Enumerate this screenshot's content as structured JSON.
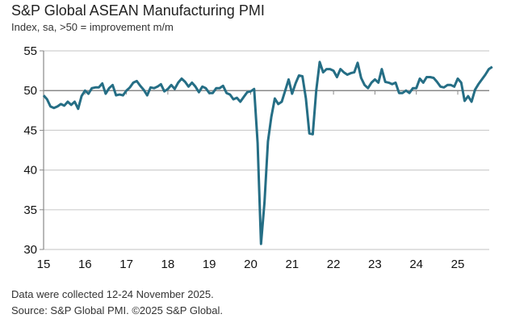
{
  "chart_data": {
    "type": "line",
    "title": "S&P Global ASEAN Manufacturing PMI",
    "subtitle": "Index, sa, >50 = improvement m/m",
    "x_start": "2015-01",
    "x_end": "2025-11",
    "frequency": "monthly",
    "xticks": [
      "15",
      "16",
      "17",
      "18",
      "19",
      "20",
      "21",
      "22",
      "23",
      "24",
      "25"
    ],
    "yticks": [
      30,
      35,
      40,
      45,
      50,
      55
    ],
    "ylim": [
      30,
      55
    ],
    "grid": true,
    "reference_line": 50,
    "line_color": "#256e85",
    "values": [
      49.4,
      48.9,
      48.0,
      47.8,
      48.0,
      48.3,
      48.1,
      48.6,
      48.2,
      48.6,
      47.7,
      49.3,
      50.0,
      49.6,
      50.3,
      50.4,
      50.4,
      50.9,
      49.6,
      50.3,
      50.7,
      49.4,
      49.5,
      49.4,
      50.0,
      50.4,
      51.0,
      51.2,
      50.6,
      50.1,
      49.4,
      50.4,
      50.3,
      50.5,
      50.8,
      49.9,
      50.2,
      50.7,
      50.2,
      51.0,
      51.5,
      51.1,
      50.5,
      51.0,
      50.5,
      49.8,
      50.5,
      50.3,
      49.7,
      49.7,
      50.3,
      50.3,
      50.6,
      49.7,
      49.5,
      48.9,
      49.1,
      48.6,
      49.2,
      49.8,
      49.9,
      50.2,
      43.4,
      30.7,
      35.9,
      43.6,
      46.7,
      49.0,
      48.3,
      48.6,
      50.0,
      51.4,
      49.6,
      50.9,
      51.9,
      51.8,
      49.0,
      44.6,
      44.5,
      50.0,
      53.6,
      52.3,
      52.7,
      52.7,
      52.5,
      51.7,
      52.7,
      52.3,
      52.0,
      52.2,
      52.3,
      53.5,
      51.6,
      50.7,
      50.3,
      51.0,
      51.4,
      51.0,
      52.7,
      51.1,
      51.0,
      50.8,
      51.0,
      49.7,
      49.7,
      50.0,
      49.7,
      50.3,
      50.3,
      51.5,
      51.0,
      51.7,
      51.7,
      51.6,
      51.1,
      50.5,
      50.4,
      50.7,
      50.7,
      50.5,
      51.5,
      51.0,
      48.7,
      49.3,
      48.6,
      50.1,
      50.8,
      51.4,
      52.0,
      52.7,
      53.0
    ]
  },
  "footer": {
    "note": "Data were collected 12-24 November 2025.",
    "source": "Source: S&P Global PMI. ©2025 S&P Global."
  }
}
